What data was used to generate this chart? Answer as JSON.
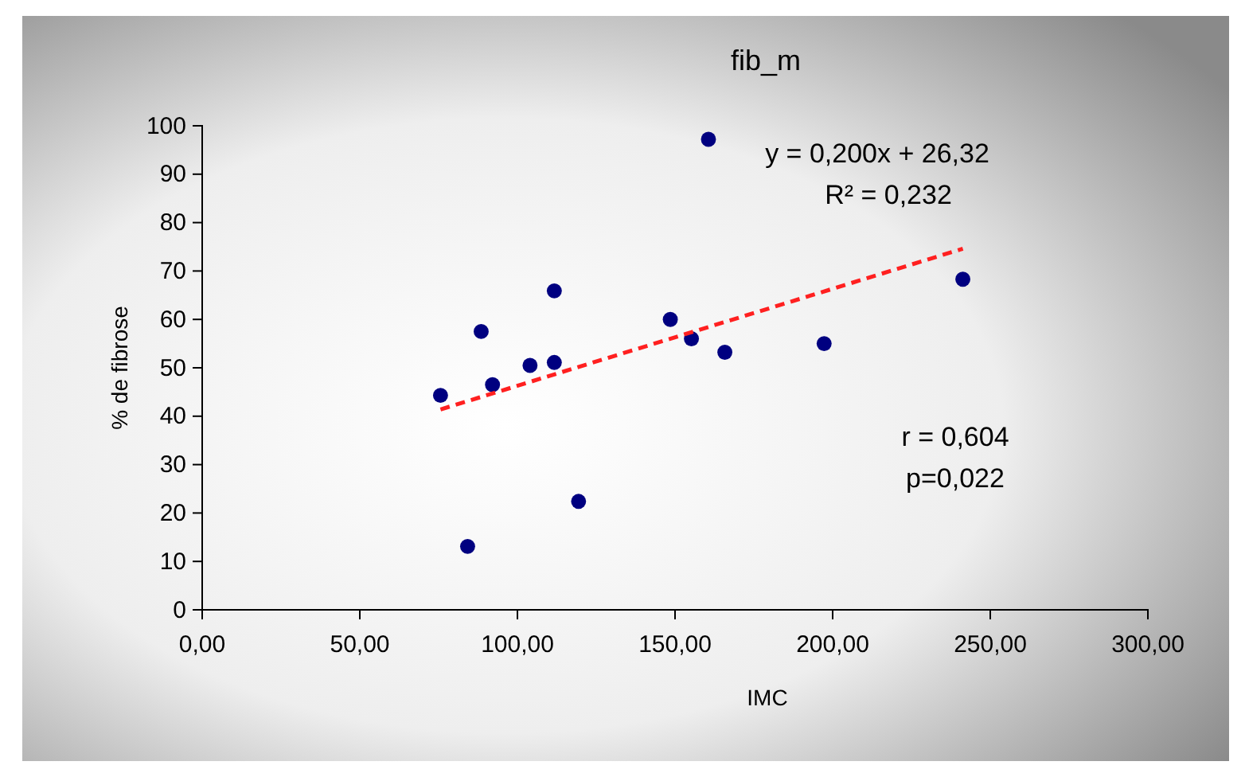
{
  "chart_data": {
    "type": "scatter",
    "title": "fib_m",
    "xlabel": "IMC",
    "ylabel": "% de fibrose",
    "xlim": [
      0,
      300
    ],
    "ylim": [
      0,
      100
    ],
    "xticks": [
      {
        "value": 0,
        "label": "0,00"
      },
      {
        "value": 50,
        "label": "50,00"
      },
      {
        "value": 100,
        "label": "100,00"
      },
      {
        "value": 150,
        "label": "150,00"
      },
      {
        "value": 200,
        "label": "200,00"
      },
      {
        "value": 250,
        "label": "250,00"
      },
      {
        "value": 300,
        "label": "300,00"
      }
    ],
    "yticks": [
      0,
      10,
      20,
      30,
      40,
      50,
      60,
      70,
      80,
      90,
      100
    ],
    "grid": false,
    "series": [
      {
        "marker": "circle",
        "color": "#000080",
        "x": [
          75.6,
          84.2,
          88.5,
          92.1,
          104,
          111.7,
          111.7,
          119.4,
          148.5,
          155.2,
          160.6,
          165.8,
          197.3,
          241.3
        ],
        "values": [
          44.3,
          13.1,
          57.5,
          46.5,
          50.5,
          65.9,
          51.1,
          22.4,
          60.0,
          56.0,
          97.2,
          53.2,
          55.0,
          68.3
        ]
      },
      {
        "type": "line",
        "color": "#ff2020",
        "line_style": "dashed",
        "x": [
          75.6,
          241.3
        ],
        "values": [
          41.4,
          74.6
        ]
      }
    ],
    "annotations": [
      "y = 0,200x + 26,32",
      "R² = 0,232",
      "r = 0,604",
      "p=0,022"
    ]
  }
}
